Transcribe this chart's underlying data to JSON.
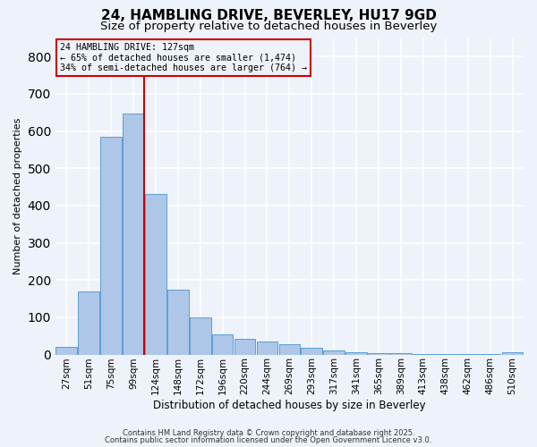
{
  "title1": "24, HAMBLING DRIVE, BEVERLEY, HU17 9GD",
  "title2": "Size of property relative to detached houses in Beverley",
  "xlabel": "Distribution of detached houses by size in Beverley",
  "ylabel": "Number of detached properties",
  "categories": [
    "27sqm",
    "51sqm",
    "75sqm",
    "99sqm",
    "124sqm",
    "148sqm",
    "172sqm",
    "196sqm",
    "220sqm",
    "244sqm",
    "269sqm",
    "293sqm",
    "317sqm",
    "341sqm",
    "365sqm",
    "389sqm",
    "413sqm",
    "438sqm",
    "462sqm",
    "486sqm",
    "510sqm"
  ],
  "values": [
    20,
    170,
    585,
    648,
    430,
    175,
    100,
    55,
    42,
    35,
    27,
    17,
    10,
    5,
    4,
    3,
    2,
    1,
    1,
    1,
    7
  ],
  "bar_color": "#aec6e8",
  "bar_edge_color": "#5a9fd4",
  "vline_pos": 3.5,
  "vline_color": "#cc0000",
  "annotation_text": "24 HAMBLING DRIVE: 127sqm\n← 65% of detached houses are smaller (1,474)\n34% of semi-detached houses are larger (764) →",
  "annotation_box_color": "#cc0000",
  "ylim": [
    0,
    850
  ],
  "yticks": [
    0,
    100,
    200,
    300,
    400,
    500,
    600,
    700,
    800
  ],
  "background_color": "#eef2fa",
  "grid_color": "#ffffff",
  "footer1": "Contains HM Land Registry data © Crown copyright and database right 2025.",
  "footer2": "Contains public sector information licensed under the Open Government Licence v3.0.",
  "title_fontsize": 11,
  "subtitle_fontsize": 9.5
}
